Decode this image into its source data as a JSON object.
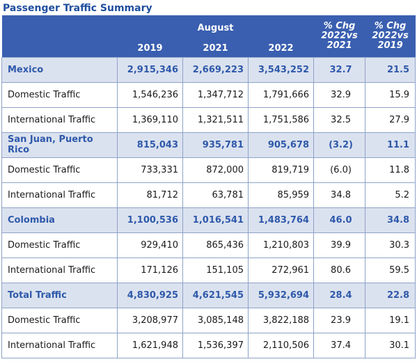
{
  "title": "Passenger Traffic Summary",
  "header": {
    "month": "August",
    "years": [
      "2019",
      "2021",
      "2022"
    ],
    "pct_chg_2021_l1": "% Chg",
    "pct_chg_2021_l2": "2022vs",
    "pct_chg_2021_l3": "2021",
    "pct_chg_2019_l1": "% Chg",
    "pct_chg_2019_l2": "2022vs",
    "pct_chg_2019_l3": "2019"
  },
  "rows": [
    {
      "label": "Mexico",
      "v2019": "2,915,346",
      "v2021": "2,669,223",
      "v2022": "3,543,252",
      "chg21": "32.7",
      "chg19": "21.5"
    },
    {
      "label": "Domestic Traffic",
      "v2019": "1,546,236",
      "v2021": "1,347,712",
      "v2022": "1,791,666",
      "chg21": "32.9",
      "chg19": "15.9"
    },
    {
      "label": "International Traffic",
      "v2019": "1,369,110",
      "v2021": "1,321,511",
      "v2022": "1,751,586",
      "chg21": "32.5",
      "chg19": "27.9"
    },
    {
      "label": "San Juan, Puerto Rico",
      "v2019": "815,043",
      "v2021": "935,781",
      "v2022": "905,678",
      "chg21": "(3.2)",
      "chg19": "11.1"
    },
    {
      "label": "Domestic Traffic",
      "v2019": "733,331",
      "v2021": "872,000",
      "v2022": "819,719",
      "chg21": "(6.0)",
      "chg19": "11.8"
    },
    {
      "label": "International Traffic",
      "v2019": "81,712",
      "v2021": "63,781",
      "v2022": "85,959",
      "chg21": "34.8",
      "chg19": "5.2"
    },
    {
      "label": "Colombia",
      "v2019": "1,100,536",
      "v2021": "1,016,541",
      "v2022": "1,483,764",
      "chg21": "46.0",
      "chg19": "34.8"
    },
    {
      "label": "Domestic Traffic",
      "v2019": "929,410",
      "v2021": "865,436",
      "v2022": "1,210,803",
      "chg21": "39.9",
      "chg19": "30.3"
    },
    {
      "label": "International Traffic",
      "v2019": "171,126",
      "v2021": "151,105",
      "v2022": "272,961",
      "chg21": "80.6",
      "chg19": "59.5"
    },
    {
      "label": "Total Traffic",
      "v2019": "4,830,925",
      "v2021": "4,621,545",
      "v2022": "5,932,694",
      "chg21": "28.4",
      "chg19": "22.8"
    },
    {
      "label": "Domestic Traffic",
      "v2019": "3,208,977",
      "v2021": "3,085,148",
      "v2022": "3,822,188",
      "chg21": "23.9",
      "chg19": "19.1"
    },
    {
      "label": "International Traffic",
      "v2019": "1,621,948",
      "v2021": "1,536,397",
      "v2022": "2,110,506",
      "chg21": "37.4",
      "chg19": "30.1"
    }
  ]
}
